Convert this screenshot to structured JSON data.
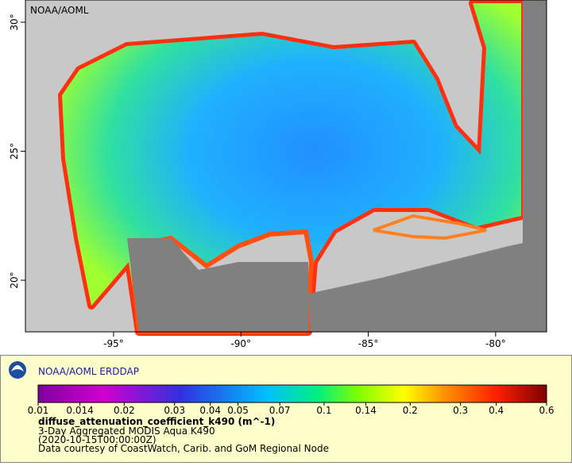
{
  "map": {
    "watermark": "NOAA/AOML",
    "xlim": [
      -98.46,
      -78.0
    ],
    "ylim": [
      18.0,
      30.86
    ],
    "lon_ticks": [
      {
        "value": -95,
        "label": "-95°"
      },
      {
        "value": -90,
        "label": "-90°"
      },
      {
        "value": -85,
        "label": "-85°"
      },
      {
        "value": -80,
        "label": "-80°"
      }
    ],
    "lat_ticks": [
      {
        "value": 20,
        "label": "20°"
      },
      {
        "value": 25,
        "label": "25°"
      },
      {
        "value": 30,
        "label": "30°"
      }
    ]
  },
  "legend": {
    "title": "NOAA/AOML ERDDAP",
    "colorbar_log": true,
    "colorbar_range": [
      0.01,
      0.6
    ],
    "colorbar_ticks": [
      0.01,
      0.014,
      0.02,
      0.03,
      0.04,
      0.05,
      0.07,
      0.1,
      0.14,
      0.2,
      0.3,
      0.4,
      0.6
    ],
    "variable": "diffuse_attenuation_coefficient_k490 (m^-1)",
    "lines": [
      "3-Day Aggregated MODIS Aqua K490",
      "(2020-10-15T00:00:00Z)",
      "Data courtesy of CoastWatch, Carib. and GoM Regional Node"
    ]
  }
}
